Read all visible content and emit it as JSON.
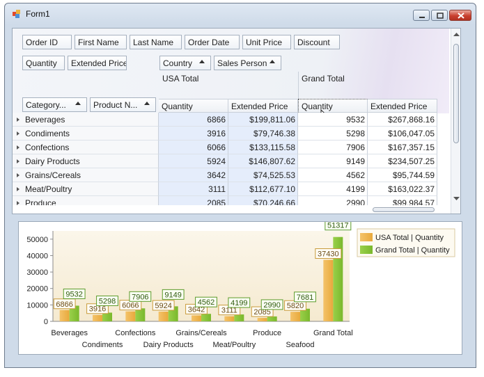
{
  "window": {
    "title": "Form1"
  },
  "filter_fields": [
    "Order ID",
    "First Name",
    "Last Name",
    "Order Date",
    "Unit Price",
    "Discount"
  ],
  "data_fields": [
    "Quantity",
    "Extended Price"
  ],
  "column_fields": [
    "Country",
    "Sales Person"
  ],
  "row_fields": [
    "Category...",
    "Product N..."
  ],
  "column_groups": [
    "USA Total",
    "Grand Total"
  ],
  "measures": [
    "Quantity",
    "Extended Price",
    "Quantity",
    "Extended Price"
  ],
  "rows": [
    {
      "label": "Beverages",
      "usa_qty": "6866",
      "usa_price": "$199,811.06",
      "gt_qty": "9532",
      "gt_price": "$267,868.16"
    },
    {
      "label": "Condiments",
      "usa_qty": "3916",
      "usa_price": "$79,746.38",
      "gt_qty": "5298",
      "gt_price": "$106,047.05"
    },
    {
      "label": "Confections",
      "usa_qty": "6066",
      "usa_price": "$133,115.58",
      "gt_qty": "7906",
      "gt_price": "$167,357.15"
    },
    {
      "label": "Dairy Products",
      "usa_qty": "5924",
      "usa_price": "$146,807.62",
      "gt_qty": "9149",
      "gt_price": "$234,507.25"
    },
    {
      "label": "Grains/Cereals",
      "usa_qty": "3642",
      "usa_price": "$74,525.53",
      "gt_qty": "4562",
      "gt_price": "$95,744.59"
    },
    {
      "label": "Meat/Poultry",
      "usa_qty": "3111",
      "usa_price": "$112,677.10",
      "gt_qty": "4199",
      "gt_price": "$163,022.37"
    },
    {
      "label": "Produce",
      "usa_qty": "2085",
      "usa_price": "$70,246.66",
      "gt_qty": "2990",
      "gt_price": "$99,984.57"
    }
  ],
  "colors": {
    "usa": "#e8a93c",
    "grand": "#7ab82c",
    "label_border_usa": "#c89a3a",
    "label_border_grand": "#5c9a2a"
  },
  "chart_data": {
    "type": "bar",
    "categories": [
      "Beverages",
      "Condiments",
      "Confections",
      "Dairy Products",
      "Grains/Cereals",
      "Meat/Poultry",
      "Produce",
      "Seafood",
      "Grand Total"
    ],
    "series": [
      {
        "name": "USA Total | Quantity",
        "values": [
          6866,
          3916,
          6066,
          5924,
          3642,
          3111,
          2085,
          5820,
          37430
        ]
      },
      {
        "name": "Grand Total | Quantity",
        "values": [
          9532,
          5298,
          7906,
          9149,
          4562,
          4199,
          2990,
          7681,
          51317
        ]
      }
    ],
    "yticks": [
      "0",
      "10000",
      "20000",
      "30000",
      "40000",
      "50000"
    ],
    "ylim": [
      0,
      55000
    ],
    "legend": "top-right",
    "grid": false
  }
}
